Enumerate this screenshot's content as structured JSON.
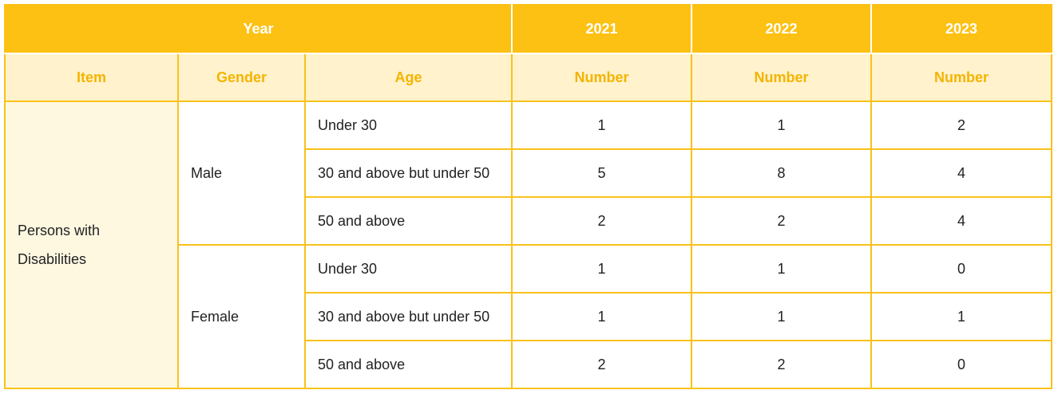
{
  "header": {
    "year_label": "Year",
    "years": [
      "2021",
      "2022",
      "2023"
    ]
  },
  "subheader": {
    "item": "Item",
    "gender": "Gender",
    "age": "Age",
    "number": [
      "Number",
      "Number",
      "Number"
    ]
  },
  "item": {
    "line1": "Persons with",
    "line2": "Disabilities"
  },
  "groups": [
    {
      "gender": "Male",
      "rows": [
        {
          "age": "Under 30",
          "values": [
            "1",
            "1",
            "2"
          ]
        },
        {
          "age": "30 and above but under 50",
          "values": [
            "5",
            "8",
            "4"
          ]
        },
        {
          "age": "50 and above",
          "values": [
            "2",
            "2",
            "4"
          ]
        }
      ]
    },
    {
      "gender": "Female",
      "rows": [
        {
          "age": "Under 30",
          "values": [
            "1",
            "1",
            "0"
          ]
        },
        {
          "age": "30 and above but under 50",
          "values": [
            "1",
            "1",
            "1"
          ]
        },
        {
          "age": "50 and above",
          "values": [
            "2",
            "2",
            "0"
          ]
        }
      ]
    }
  ],
  "colors": {
    "header_bg": "#fdc113",
    "subheader_bg": "#fff2cc",
    "subheader_text": "#f4b400",
    "item_bg": "#fff8e1",
    "border": "#f9c21a"
  }
}
